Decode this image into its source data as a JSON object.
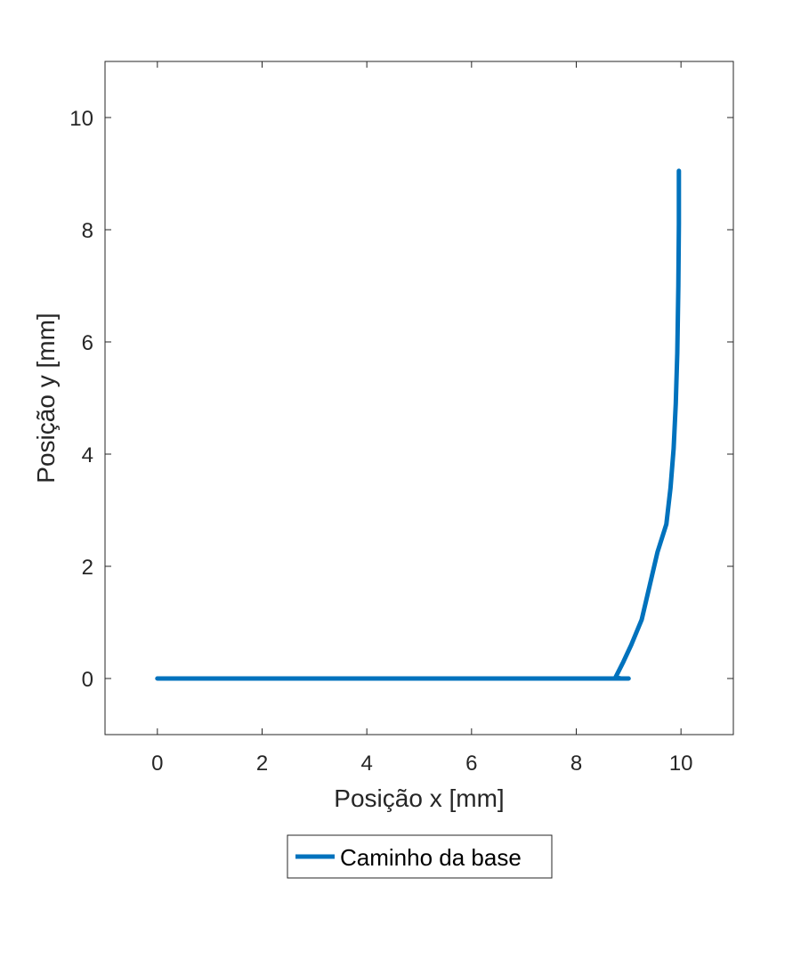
{
  "chart_data": {
    "type": "line",
    "title": "",
    "xlabel": "Posição x [mm]",
    "ylabel": "Posição y [mm]",
    "xlim": [
      -1,
      11
    ],
    "ylim": [
      -1,
      11
    ],
    "xticks": [
      0,
      2,
      4,
      6,
      8,
      10
    ],
    "yticks": [
      0,
      2,
      4,
      6,
      8,
      10
    ],
    "grid": false,
    "legend_position": "bottom-outside",
    "series": [
      {
        "name": "Caminho da base",
        "color": "#0072BD",
        "x": [
          0,
          1,
          2,
          3,
          4,
          5,
          6,
          7,
          8,
          8.5,
          8.75,
          8.9,
          9.0,
          8.95,
          8.85,
          8.75,
          8.9,
          9.05,
          9.25,
          9.4,
          9.55,
          9.72,
          9.8,
          9.86,
          9.9,
          9.93,
          9.95,
          9.96,
          9.96
        ],
        "y": [
          0,
          0,
          0,
          0,
          0,
          0,
          0,
          0,
          0,
          0,
          0,
          0,
          0,
          0,
          0,
          0.02,
          0.3,
          0.6,
          1.05,
          1.65,
          2.25,
          2.75,
          3.4,
          4.1,
          4.9,
          5.8,
          7.0,
          8.1,
          9.05
        ]
      }
    ]
  }
}
